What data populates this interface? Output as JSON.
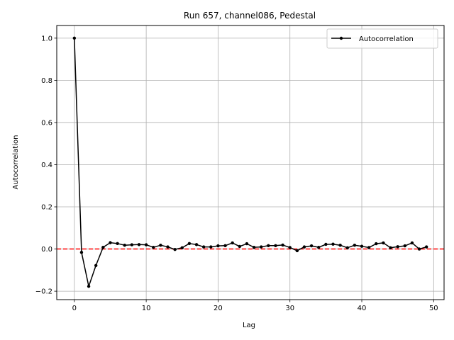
{
  "chart_data": {
    "type": "line",
    "title": "Run 657, channel086, Pedestal",
    "xlabel": "Lag",
    "ylabel": "Autocorrelation",
    "xlim": [
      -2.45,
      51.45
    ],
    "ylim": [
      -0.24,
      1.06
    ],
    "xticks": [
      0,
      10,
      20,
      30,
      40,
      50
    ],
    "yticks": [
      -0.2,
      0.0,
      0.2,
      0.4,
      0.6,
      0.8,
      1.0
    ],
    "xtick_labels": [
      "0",
      "10",
      "20",
      "30",
      "40",
      "50"
    ],
    "ytick_labels": [
      "−0.2",
      "0.0",
      "0.2",
      "0.4",
      "0.6",
      "0.8",
      "1.0"
    ],
    "grid": true,
    "legend_position": "top-right",
    "reference_line": {
      "y": 0.0,
      "color": "#ff0000",
      "style": "dashed"
    },
    "series": [
      {
        "name": "Autocorrelation",
        "color": "#000000",
        "marker": "dot",
        "x": [
          0,
          1,
          2,
          3,
          4,
          5,
          6,
          7,
          8,
          9,
          10,
          11,
          12,
          13,
          14,
          15,
          16,
          17,
          18,
          19,
          20,
          21,
          22,
          23,
          24,
          25,
          26,
          27,
          28,
          29,
          30,
          31,
          32,
          33,
          34,
          35,
          36,
          37,
          38,
          39,
          40,
          41,
          42,
          43,
          44,
          45,
          46,
          47,
          48,
          49
        ],
        "y": [
          1.0,
          -0.016,
          -0.177,
          -0.078,
          0.008,
          0.03,
          0.026,
          0.018,
          0.02,
          0.021,
          0.02,
          0.008,
          0.018,
          0.01,
          -0.002,
          0.006,
          0.026,
          0.021,
          0.01,
          0.01,
          0.015,
          0.016,
          0.029,
          0.012,
          0.025,
          0.008,
          0.01,
          0.016,
          0.016,
          0.019,
          0.007,
          -0.008,
          0.01,
          0.015,
          0.008,
          0.022,
          0.023,
          0.018,
          0.006,
          0.018,
          0.013,
          0.007,
          0.025,
          0.029,
          0.006,
          0.011,
          0.015,
          0.029,
          0.0,
          0.01
        ]
      }
    ]
  }
}
